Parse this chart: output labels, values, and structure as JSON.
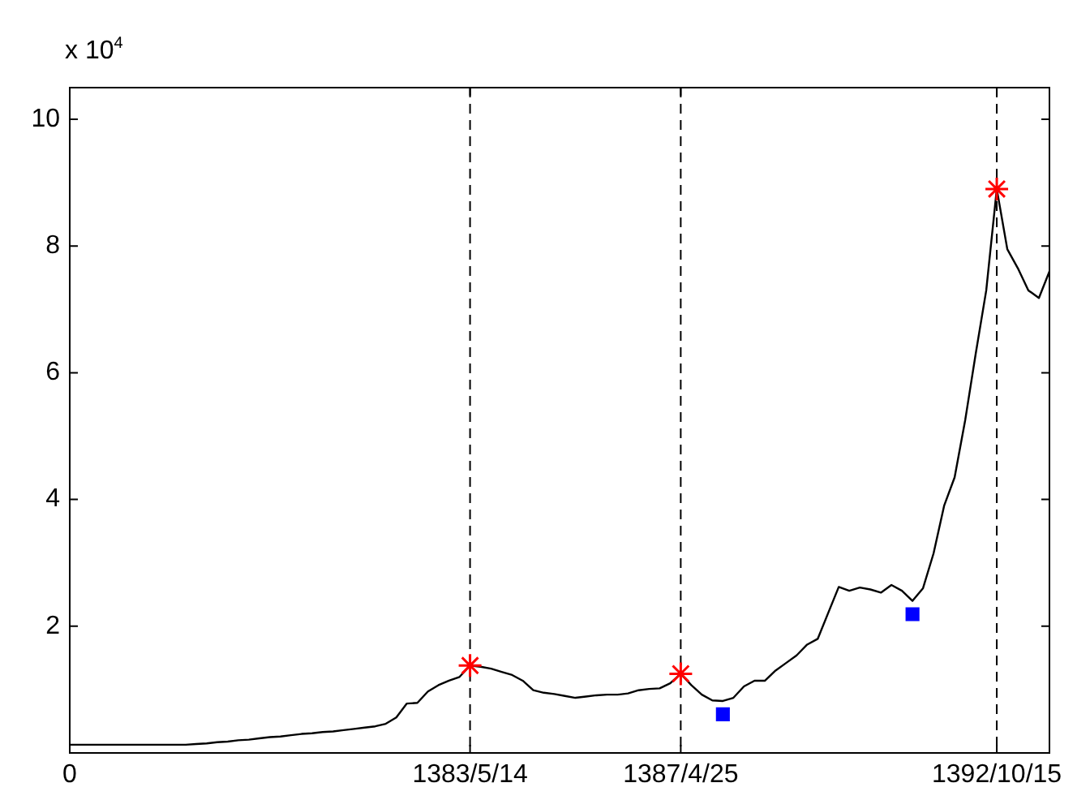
{
  "chart_data": {
    "type": "line",
    "annotations": [
      "x 10$^{4}$"
    ],
    "categories": [
      "0",
      null,
      null,
      null,
      null,
      null,
      null,
      null,
      null,
      null,
      null,
      null,
      null,
      null,
      null,
      null,
      null,
      null,
      null,
      null,
      null,
      null,
      null,
      null,
      null,
      null,
      null,
      null,
      null,
      null,
      null,
      null,
      null,
      null,
      null,
      null,
      null,
      null,
      "1383/5/14",
      null,
      null,
      null,
      null,
      null,
      null,
      null,
      null,
      null,
      null,
      null,
      null,
      null,
      null,
      null,
      null,
      null,
      null,
      null,
      "1387/4/25",
      null,
      null,
      null,
      null,
      null,
      null,
      null,
      null,
      null,
      null,
      null,
      null,
      null,
      null,
      null,
      null,
      null,
      null,
      null,
      null,
      null,
      null,
      null,
      null,
      null,
      null,
      null,
      null,
      null,
      "1392/10/15",
      null,
      null,
      null,
      null,
      null
    ],
    "series": [
      {
        "color": "#000000",
        "marker": "none",
        "line_style": "solid",
        "values": [
          0.13,
          0.13,
          0.13,
          0.13,
          0.13,
          0.13,
          0.13,
          0.13,
          0.13,
          0.13,
          0.13,
          0.13,
          0.14,
          0.15,
          0.17,
          0.18,
          0.2,
          0.21,
          0.23,
          0.25,
          0.26,
          0.28,
          0.3,
          0.31,
          0.33,
          0.34,
          0.36,
          0.38,
          0.4,
          0.42,
          0.46,
          0.56,
          0.78,
          0.79,
          0.97,
          1.07,
          1.14,
          1.2,
          1.38,
          1.36,
          1.33,
          1.28,
          1.23,
          1.14,
          0.99,
          0.95,
          0.93,
          0.9,
          0.87,
          0.89,
          0.91,
          0.92,
          0.92,
          0.94,
          0.99,
          1.01,
          1.02,
          1.1,
          1.25,
          1.07,
          0.92,
          0.83,
          0.82,
          0.87,
          1.05,
          1.14,
          1.14,
          1.3,
          1.42,
          1.54,
          1.71,
          1.8,
          2.21,
          2.62,
          2.56,
          2.61,
          2.58,
          2.53,
          2.65,
          2.56,
          2.4,
          2.6,
          3.15,
          3.9,
          4.35,
          5.25,
          6.3,
          7.3,
          8.9,
          7.95,
          7.65,
          7.3,
          7.18,
          7.6
        ]
      },
      {
        "type": "scatter",
        "color": "#ff0000",
        "marker": "cross",
        "values": [
          null,
          null,
          null,
          null,
          null,
          null,
          null,
          null,
          null,
          null,
          null,
          null,
          null,
          null,
          null,
          null,
          null,
          null,
          null,
          null,
          null,
          null,
          null,
          null,
          null,
          null,
          null,
          null,
          null,
          null,
          null,
          null,
          null,
          null,
          null,
          null,
          null,
          null,
          1.38,
          null,
          null,
          null,
          null,
          null,
          null,
          null,
          null,
          null,
          null,
          null,
          null,
          null,
          null,
          null,
          null,
          null,
          null,
          null,
          1.25,
          null,
          null,
          null,
          null,
          null,
          null,
          null,
          null,
          null,
          null,
          null,
          null,
          null,
          null,
          null,
          null,
          null,
          null,
          null,
          null,
          null,
          null,
          null,
          null,
          null,
          null,
          null,
          null,
          null,
          8.9,
          null,
          null,
          null,
          null,
          null
        ]
      },
      {
        "type": "scatter",
        "color": "#0000ff",
        "marker": "square",
        "values": [
          null,
          null,
          null,
          null,
          null,
          null,
          null,
          null,
          null,
          null,
          null,
          null,
          null,
          null,
          null,
          null,
          null,
          null,
          null,
          null,
          null,
          null,
          null,
          null,
          null,
          null,
          null,
          null,
          null,
          null,
          null,
          null,
          null,
          null,
          null,
          null,
          null,
          null,
          null,
          null,
          null,
          null,
          null,
          null,
          null,
          null,
          null,
          null,
          null,
          null,
          null,
          null,
          null,
          null,
          null,
          null,
          null,
          null,
          null,
          null,
          null,
          null,
          0.61,
          null,
          null,
          null,
          null,
          null,
          null,
          null,
          null,
          null,
          null,
          null,
          null,
          null,
          null,
          null,
          null,
          null,
          2.19,
          null,
          null,
          null,
          null,
          null,
          null,
          null,
          null,
          null,
          null,
          null,
          null,
          null
        ]
      }
    ],
    "ylim": [
      0,
      10.5
    ],
    "yticks": [
      2,
      4,
      6,
      8,
      10
    ],
    "ref_lines": [
      {
        "axis": "x",
        "value": "1383/5/14",
        "line_style": "dashed",
        "color": "#000000"
      },
      {
        "axis": "x",
        "value": "1387/4/25",
        "line_style": "dashed",
        "color": "#000000"
      },
      {
        "axis": "x",
        "value": "1392/10/15",
        "line_style": "dashed",
        "color": "#000000"
      }
    ],
    "grid": false,
    "legend": false
  }
}
